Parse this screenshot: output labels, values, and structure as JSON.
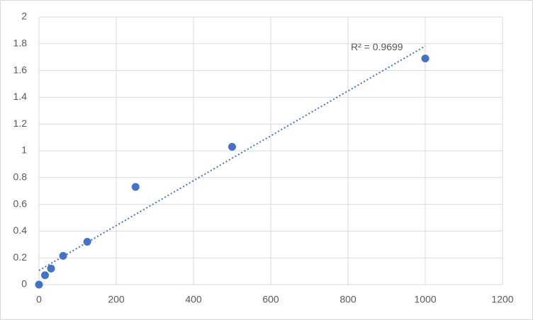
{
  "chart_data": {
    "type": "scatter",
    "series": [
      {
        "color": "#4472c4",
        "x": [
          0,
          15.6,
          31.25,
          62.5,
          125,
          250,
          500,
          1000
        ],
        "values": [
          0,
          0.07,
          0.12,
          0.215,
          0.32,
          0.73,
          1.03,
          1.69
        ]
      }
    ],
    "trendline": {
      "type": "linear",
      "annotation": "R² = 0.9699"
    },
    "xlim": [
      0,
      1200
    ],
    "xticks": [
      0,
      200,
      400,
      600,
      800,
      1000,
      1200
    ],
    "ylim": [
      0,
      2
    ],
    "yticks": [
      0,
      0.2,
      0.4,
      0.6,
      0.8,
      1,
      1.2,
      1.4,
      1.6,
      1.8,
      2
    ],
    "grid": true
  }
}
